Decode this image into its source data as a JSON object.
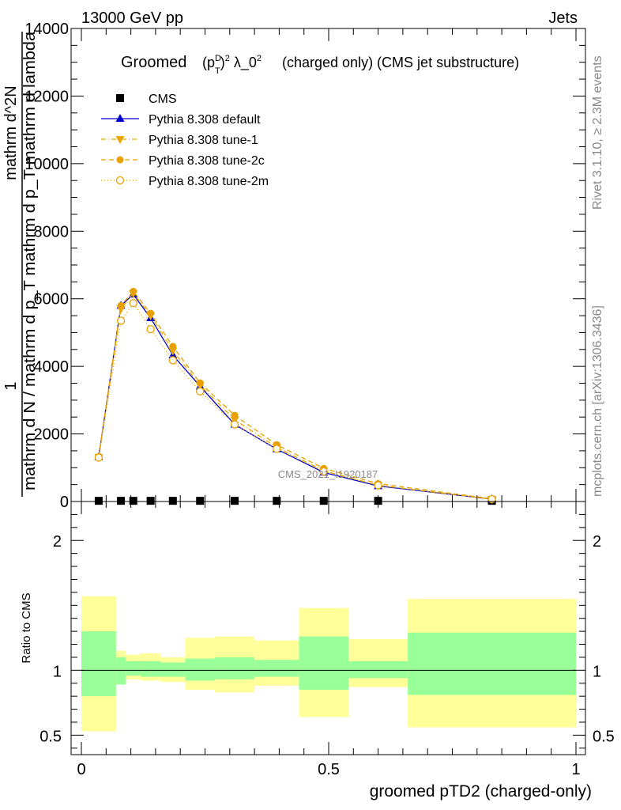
{
  "header": {
    "energy_label": "13000 GeV pp",
    "category_label": "Jets"
  },
  "side_labels": {
    "rivet": "Rivet 3.1.10, ≥ 2.3M events",
    "mcplots": "mcplots.cern.ch [arXiv:1306.3436]"
  },
  "watermark": "CMS_2021_I1920187",
  "chart_data": [
    {
      "type": "line",
      "title_prefix": "Groomed",
      "title_symbol": "(p_T^D)^2 λ_0^2",
      "title_suffix": "(charged only) (CMS jet substructure)",
      "ylabel_top": "1",
      "ylabel_bottom": "mathrm d N / mathrm d p_T mathrm d p_T mathrm d lambda",
      "ylabel_mid": "mathrm d^2N",
      "ylim": [
        0,
        14000
      ],
      "yticks": [
        0,
        2000,
        4000,
        6000,
        8000,
        10000,
        12000,
        14000
      ],
      "xlim": [
        0,
        1
      ],
      "legend_position": "top-left",
      "x": [
        0.035,
        0.08,
        0.105,
        0.14,
        0.185,
        0.24,
        0.31,
        0.395,
        0.49,
        0.6,
        0.83
      ],
      "series": [
        {
          "name": "CMS",
          "color": "#000000",
          "marker": "square",
          "values": [
            20,
            20,
            20,
            20,
            20,
            20,
            20,
            20,
            20,
            20,
            20
          ]
        },
        {
          "name": "Pythia 8.308 default",
          "color": "#0000cc",
          "marker": "triangle-up",
          "dash": "solid",
          "values": [
            1320,
            5800,
            6130,
            5430,
            4330,
            3410,
            2280,
            1550,
            860,
            460,
            70
          ]
        },
        {
          "name": "Pythia 8.308 tune-1",
          "color": "#e8a800",
          "marker": "triangle-down",
          "dash": "dash-dot",
          "values": [
            1310,
            5700,
            6160,
            5500,
            4460,
            3440,
            2420,
            1600,
            910,
            480,
            70
          ]
        },
        {
          "name": "Pythia 8.308 tune-2c",
          "color": "#e8a000",
          "marker": "circle",
          "dash": "dashed",
          "values": [
            1330,
            5800,
            6220,
            5570,
            4590,
            3510,
            2550,
            1680,
            980,
            530,
            80
          ]
        },
        {
          "name": "Pythia 8.308 tune-2m",
          "color": "#e8a000",
          "marker": "open-circle",
          "dash": "dotted",
          "values": [
            1300,
            5350,
            5870,
            5100,
            4180,
            3260,
            2280,
            1560,
            890,
            480,
            70
          ]
        }
      ]
    },
    {
      "type": "area",
      "ylabel": "Ratio to CMS",
      "xlabel": "groomed pTD2 (charged-only)",
      "ylim": [
        0.35,
        2.3
      ],
      "yticks": [
        0.5,
        1,
        2
      ],
      "ytick_labels": [
        "0.5",
        "1",
        "2"
      ],
      "xticks": [
        0,
        0.5,
        1
      ],
      "xtick_labels": [
        "0",
        "0.5",
        "1"
      ],
      "reference": 1,
      "band_colors": {
        "inner": "#99ff99",
        "outer": "#ffff99"
      },
      "bins": [
        {
          "x0": 0.0,
          "x1": 0.07,
          "inner": [
            0.8,
            1.3
          ],
          "outer": [
            0.53,
            1.57
          ]
        },
        {
          "x0": 0.07,
          "x1": 0.09,
          "inner": [
            0.89,
            1.1
          ],
          "outer": [
            0.89,
            1.15
          ]
        },
        {
          "x0": 0.09,
          "x1": 0.12,
          "inner": [
            0.96,
            1.07
          ],
          "outer": [
            0.93,
            1.12
          ]
        },
        {
          "x0": 0.12,
          "x1": 0.16,
          "inner": [
            0.95,
            1.07
          ],
          "outer": [
            0.92,
            1.13
          ]
        },
        {
          "x0": 0.16,
          "x1": 0.21,
          "inner": [
            0.95,
            1.06
          ],
          "outer": [
            0.91,
            1.1
          ]
        },
        {
          "x0": 0.21,
          "x1": 0.27,
          "inner": [
            0.92,
            1.09
          ],
          "outer": [
            0.85,
            1.25
          ]
        },
        {
          "x0": 0.27,
          "x1": 0.35,
          "inner": [
            0.93,
            1.1
          ],
          "outer": [
            0.83,
            1.26
          ]
        },
        {
          "x0": 0.35,
          "x1": 0.44,
          "inner": [
            0.95,
            1.08
          ],
          "outer": [
            0.88,
            1.23
          ]
        },
        {
          "x0": 0.44,
          "x1": 0.54,
          "inner": [
            0.85,
            1.26
          ],
          "outer": [
            0.64,
            1.48
          ]
        },
        {
          "x0": 0.54,
          "x1": 0.66,
          "inner": [
            0.94,
            1.07
          ],
          "outer": [
            0.87,
            1.24
          ]
        },
        {
          "x0": 0.66,
          "x1": 1.0,
          "inner": [
            0.81,
            1.29
          ],
          "outer": [
            0.56,
            1.55
          ]
        }
      ]
    }
  ]
}
